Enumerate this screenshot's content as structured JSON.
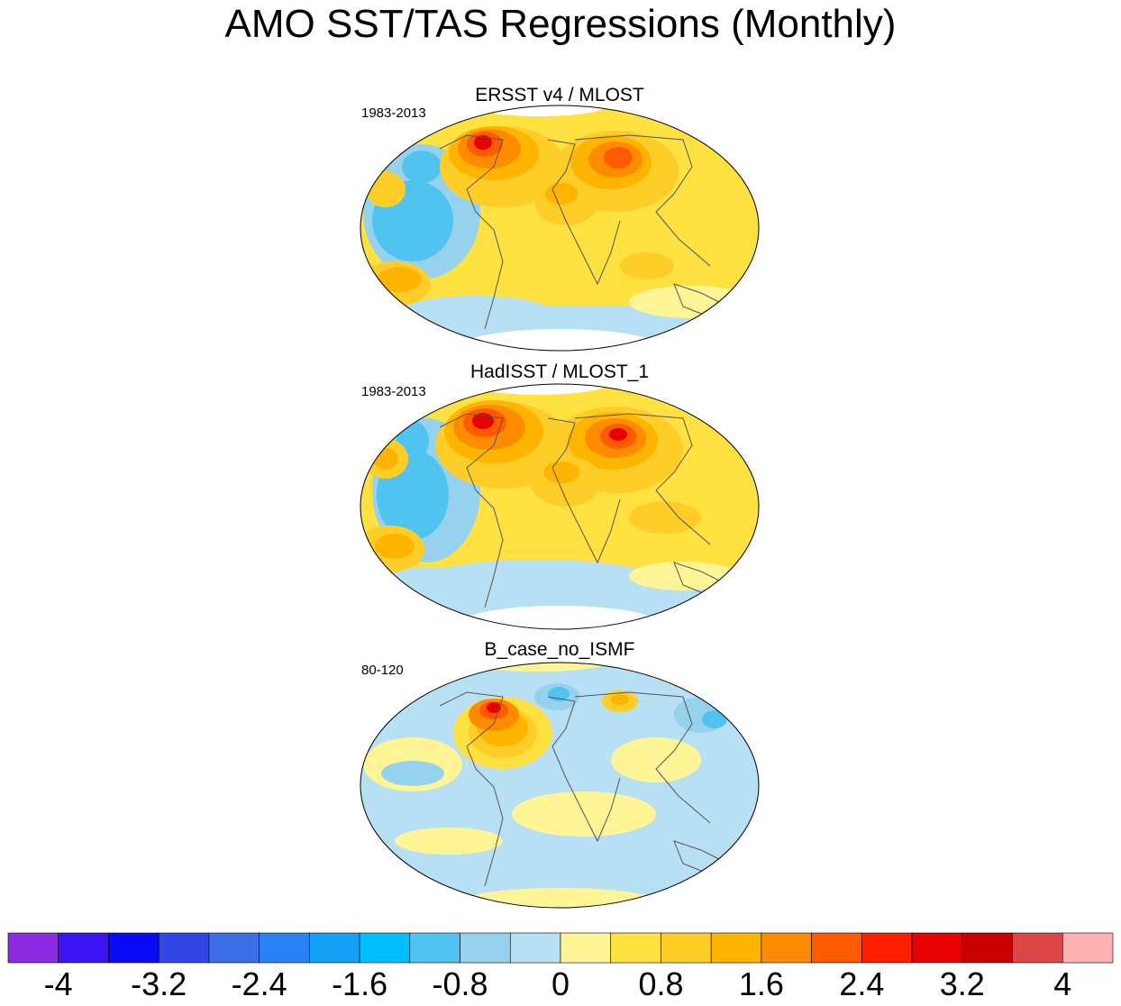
{
  "title": "AMO SST/TAS Regressions (Monthly)",
  "panels": [
    {
      "title": "ERSST v4 / MLOST",
      "period": "1983-2013"
    },
    {
      "title": "HadISST / MLOST_1",
      "period": "1983-2013"
    },
    {
      "title": "B_case_no_ISMF",
      "period": "80-120"
    }
  ],
  "colorbar": {
    "colors": [
      "#8a2be2",
      "#3c14f0",
      "#0a0af5",
      "#3246e6",
      "#3c6ee6",
      "#2882f5",
      "#14a0f5",
      "#00beff",
      "#50c3f0",
      "#96d2ee",
      "#b8e0f4",
      "#fff596",
      "#ffe141",
      "#ffcd28",
      "#ffb400",
      "#ff8c00",
      "#ff5a00",
      "#ff1e00",
      "#e60000",
      "#c80000",
      "#dc4646",
      "#ffb4b4"
    ],
    "labels": [
      "-4",
      "-3.2",
      "-2.4",
      "-1.6",
      "-0.8",
      "0",
      "0.8",
      "1.6",
      "2.4",
      "3.2",
      "4"
    ]
  }
}
